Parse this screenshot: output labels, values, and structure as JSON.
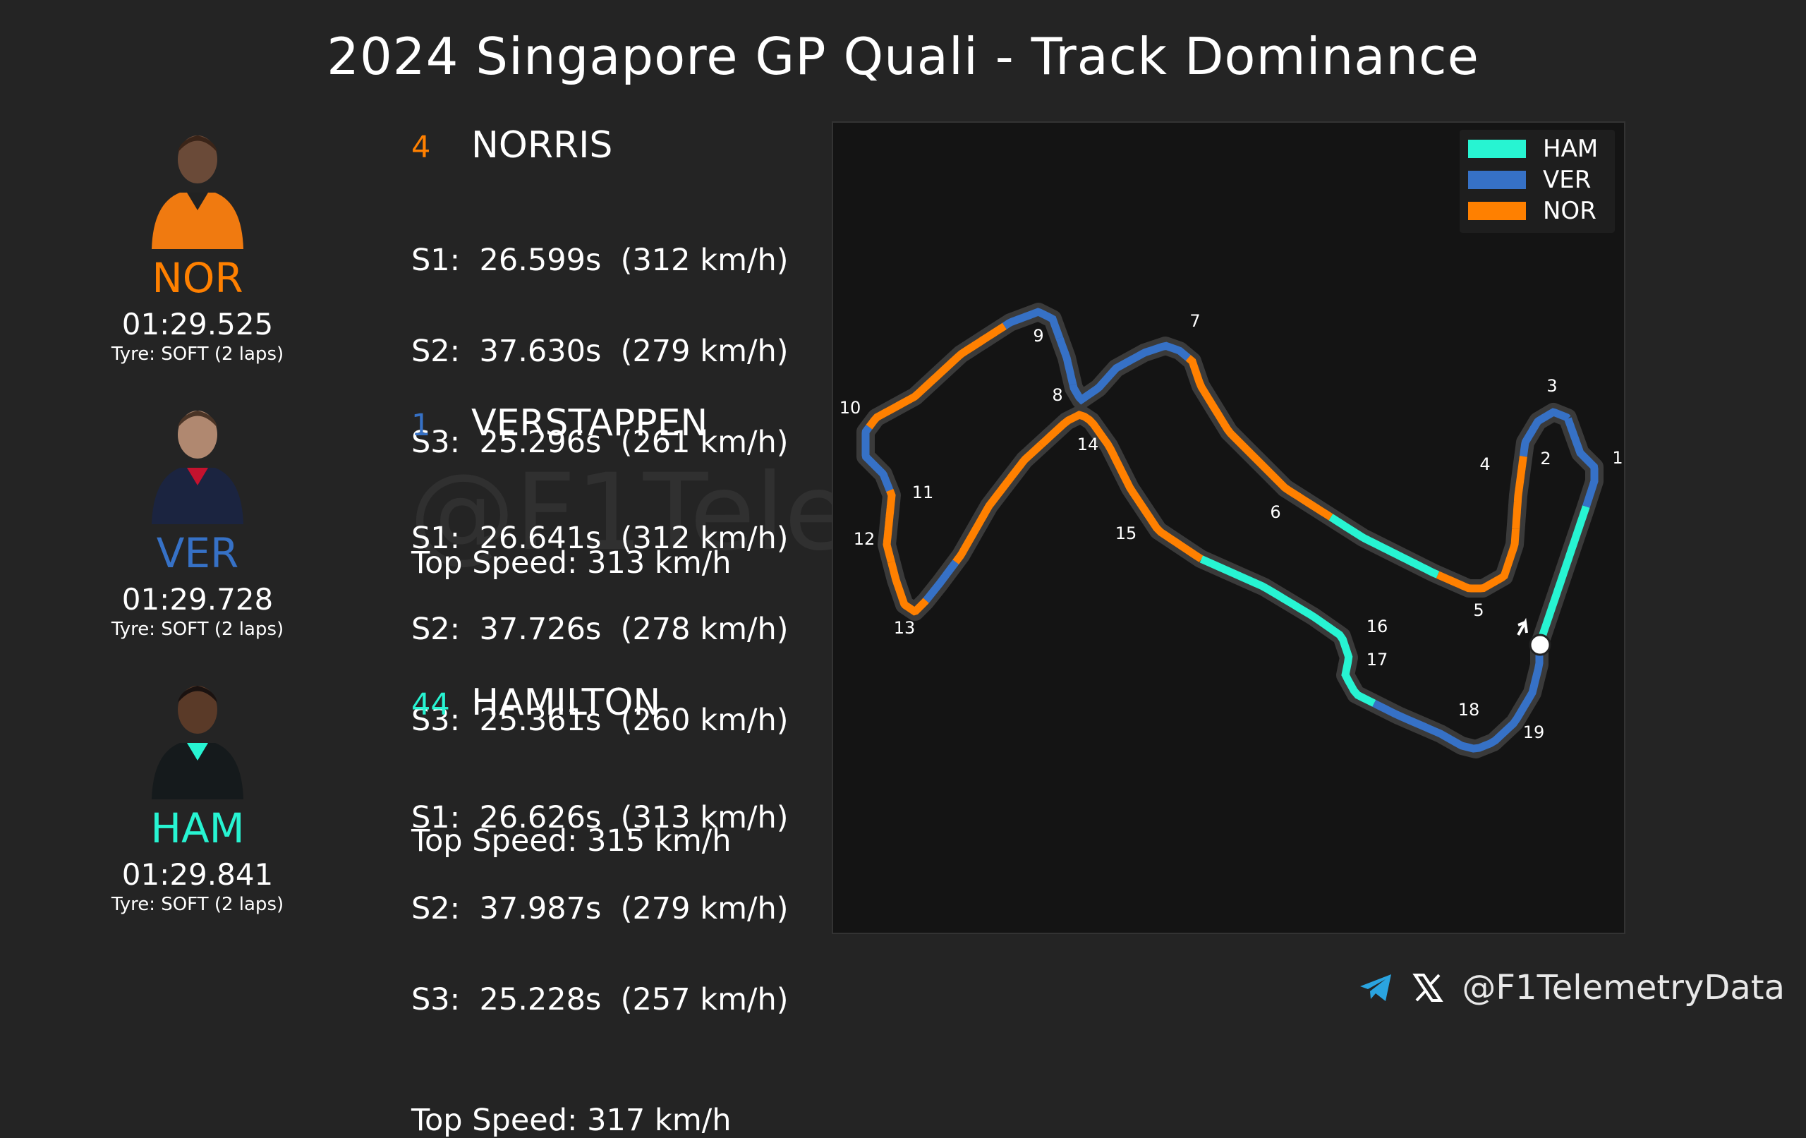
{
  "title": "2024 Singapore GP Quali - Track Dominance",
  "colors": {
    "NOR": "#ff8000",
    "VER": "#3671c6",
    "HAM": "#27f4d2",
    "background": "#242424",
    "panel": "#141414"
  },
  "drivers": [
    {
      "code": "NOR",
      "number": "4",
      "name": "NORRIS",
      "laptime": "01:29.525",
      "tyre": "Tyre: SOFT (2 laps)",
      "sectors": [
        "S1:  26.599s  (312 km/h)",
        "S2:  37.630s  (279 km/h)",
        "S3:  25.296s  (261 km/h)"
      ],
      "top_speed": "Top Speed: 313 km/h"
    },
    {
      "code": "VER",
      "number": "1",
      "name": "VERSTAPPEN",
      "laptime": "01:29.728",
      "tyre": "Tyre: SOFT (2 laps)",
      "sectors": [
        "S1:  26.641s  (312 km/h)",
        "S2:  37.726s  (278 km/h)",
        "S3:  25.361s  (260 km/h)"
      ],
      "top_speed": "Top Speed: 315 km/h"
    },
    {
      "code": "HAM",
      "number": "44",
      "name": "HAMILTON",
      "laptime": "01:29.841",
      "tyre": "Tyre: SOFT (2 laps)",
      "sectors": [
        "S1:  26.626s  (313 km/h)",
        "S2:  37.987s  (279 km/h)",
        "S3:  25.228s  (257 km/h)"
      ],
      "top_speed": "Top Speed: 317 km/h"
    }
  ],
  "legend": [
    "HAM",
    "VER",
    "NOR"
  ],
  "corner_labels": [
    "1",
    "2",
    "3",
    "4",
    "5",
    "6",
    "7",
    "8",
    "9",
    "10",
    "11",
    "12",
    "13",
    "14",
    "15",
    "16",
    "17",
    "18",
    "19"
  ],
  "watermark": "@F1TelemetryData",
  "footer": {
    "handle": "@F1TelemetryData",
    "icons": [
      "telegram-icon",
      "x-icon"
    ]
  }
}
